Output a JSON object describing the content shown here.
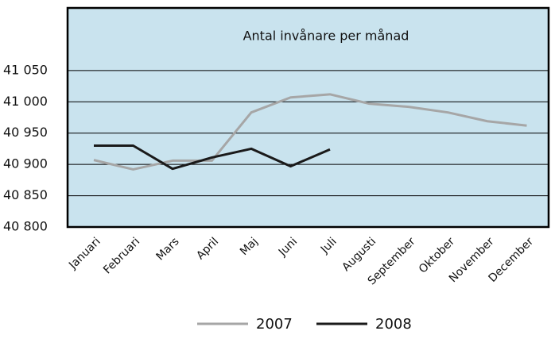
{
  "chart_data": {
    "type": "line",
    "title": "Antal invånare per månad",
    "categories": [
      "Januari",
      "Februari",
      "Mars",
      "April",
      "Maj",
      "Juni",
      "Juli",
      "Augusti",
      "September",
      "Oktober",
      "November",
      "December"
    ],
    "series": [
      {
        "name": "2007",
        "color": "#a6a6a6",
        "values": [
          40907,
          40892,
          40906,
          40906,
          40983,
          41007,
          41012,
          40997,
          40992,
          40983,
          40969,
          40962
        ]
      },
      {
        "name": "2008",
        "color": "#1a1a1a",
        "values": [
          40930,
          40930,
          40893,
          40911,
          40925,
          40897,
          40924,
          null,
          null,
          null,
          null,
          null
        ]
      }
    ],
    "ylim": [
      40800,
      41150
    ],
    "yticks": [
      {
        "value": 40800,
        "label": "40 800"
      },
      {
        "value": 40850,
        "label": "40 850"
      },
      {
        "value": 40900,
        "label": "40 900"
      },
      {
        "value": 40950,
        "label": "40 950"
      },
      {
        "value": 41000,
        "label": "41 000"
      },
      {
        "value": 41050,
        "label": "41 050"
      }
    ],
    "grid": true
  }
}
